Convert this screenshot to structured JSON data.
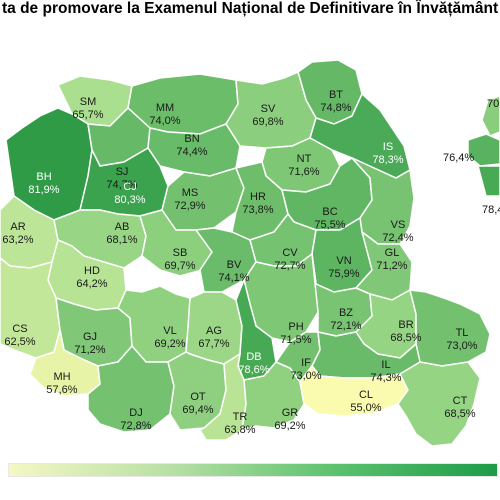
{
  "title": "ta de promovare la Examenul Național de Definitivare în Învățământ (N",
  "colors": {
    "low": "#fbfbb0",
    "mid": "#a8de8e",
    "high": "#2e9b46",
    "border": "#ffffff",
    "legend_start": "#f5f7c4",
    "legend_end": "#1e9b48"
  },
  "counties": [
    {
      "code": "SM",
      "value": "65,7%",
      "rate": 65.7
    },
    {
      "code": "MM",
      "value": "74,0%",
      "rate": 74.0
    },
    {
      "code": "BT",
      "value": "74,8%",
      "rate": 74.8
    },
    {
      "code": "SV",
      "value": "69,8%",
      "rate": 69.8
    },
    {
      "code": "BH",
      "value": "81,9%",
      "rate": 81.9
    },
    {
      "code": "SJ",
      "value": "74,7%",
      "rate": 74.7
    },
    {
      "code": "BN",
      "value": "74,4%",
      "rate": 74.4
    },
    {
      "code": "IS",
      "value": "78,3%",
      "rate": 78.3
    },
    {
      "code": "CJ",
      "value": "80,3%",
      "rate": 80.3
    },
    {
      "code": "NT",
      "value": "71,6%",
      "rate": 71.6
    },
    {
      "code": "AR",
      "value": "63,2%",
      "rate": 63.2
    },
    {
      "code": "AB",
      "value": "68,1%",
      "rate": 68.1
    },
    {
      "code": "MS",
      "value": "72,9%",
      "rate": 72.9
    },
    {
      "code": "HR",
      "value": "73,8%",
      "rate": 73.8
    },
    {
      "code": "BC",
      "value": "75,5%",
      "rate": 75.5
    },
    {
      "code": "VS",
      "value": "72,4%",
      "rate": 72.4
    },
    {
      "code": "HD",
      "value": "64,2%",
      "rate": 64.2
    },
    {
      "code": "SB",
      "value": "69,7%",
      "rate": 69.7
    },
    {
      "code": "BV",
      "value": "74,1%",
      "rate": 74.1
    },
    {
      "code": "CV",
      "value": "72,7%",
      "rate": 72.7
    },
    {
      "code": "VN",
      "value": "75,9%",
      "rate": 75.9
    },
    {
      "code": "GL",
      "value": "71,2%",
      "rate": 71.2
    },
    {
      "code": "CS",
      "value": "62,5%",
      "rate": 62.5
    },
    {
      "code": "GJ",
      "value": "71,2%",
      "rate": 71.2
    },
    {
      "code": "VL",
      "value": "69,2%",
      "rate": 69.2
    },
    {
      "code": "AG",
      "value": "67,7%",
      "rate": 67.7
    },
    {
      "code": "PH",
      "value": "71,5%",
      "rate": 71.5
    },
    {
      "code": "BZ",
      "value": "72,1%",
      "rate": 72.1
    },
    {
      "code": "BR",
      "value": "68,5%",
      "rate": 68.5
    },
    {
      "code": "TL",
      "value": "73,0%",
      "rate": 73.0
    },
    {
      "code": "DB",
      "value": "78,6%",
      "rate": 78.6
    },
    {
      "code": "MH",
      "value": "57,6%",
      "rate": 57.6
    },
    {
      "code": "DJ",
      "value": "72,8%",
      "rate": 72.8
    },
    {
      "code": "OT",
      "value": "69,4%",
      "rate": 69.4
    },
    {
      "code": "TR",
      "value": "63,8%",
      "rate": 63.8
    },
    {
      "code": "GR",
      "value": "69,2%",
      "rate": 69.2
    },
    {
      "code": "IF",
      "value": "73,0%",
      "rate": 73.0
    },
    {
      "code": "IL",
      "value": "74,3%",
      "rate": 74.3
    },
    {
      "code": "CL",
      "value": "55,0%",
      "rate": 55.0
    },
    {
      "code": "CT",
      "value": "68,5%",
      "rate": 68.5
    }
  ],
  "side_labels": [
    {
      "text": "70",
      "rate": 70
    },
    {
      "text": "76,4%",
      "rate": 76.4
    },
    {
      "text": "78,4",
      "rate": 78.4
    }
  ]
}
